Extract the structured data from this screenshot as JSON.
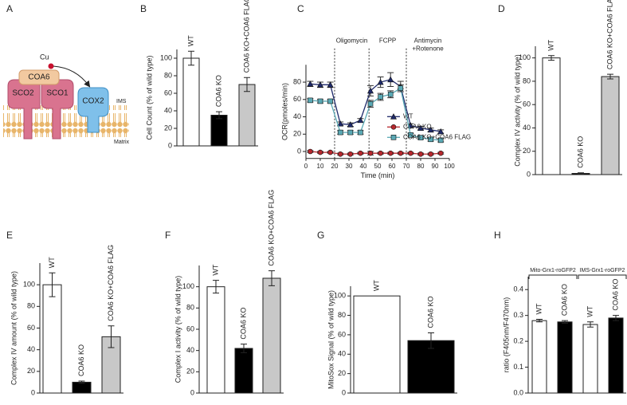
{
  "diagram": {
    "label": "A",
    "labels": {
      "cu": "Cu",
      "coa6": "COA6",
      "sco2": "SCO2",
      "sco1": "SCO1",
      "cox2": "COX2",
      "ims": "IMS",
      "matrix": "Matrix"
    }
  },
  "chart_data": [
    {
      "type": "bar",
      "label": "B",
      "ylabel": "Cell Count (% of wild type)",
      "categories": [
        "WT",
        "COA6 KO",
        "COA6 KO+COA6 FLAG"
      ],
      "values": [
        100,
        35,
        70
      ],
      "errors": [
        8,
        4,
        8
      ],
      "colors": [
        "#ffffff",
        "#000000",
        "#c8c8c8"
      ],
      "ylim": [
        0,
        110
      ],
      "yticks": [
        0,
        20,
        40,
        60,
        80,
        100
      ]
    },
    {
      "type": "line",
      "label": "C",
      "ylabel": "OCR(pmoles/min)",
      "xlabel": "Time (min)",
      "x": [
        3,
        10,
        17,
        24,
        31,
        38,
        45,
        52,
        59,
        66,
        73,
        80,
        87,
        94
      ],
      "series": [
        {
          "name": "WT",
          "color": "#1f2a6b",
          "marker": "triangle",
          "values": [
            78,
            77,
            77,
            32,
            31,
            36,
            70,
            80,
            83,
            75,
            30,
            27,
            25,
            23
          ],
          "errors": [
            3,
            3,
            3,
            2,
            2,
            2,
            6,
            6,
            8,
            6,
            2,
            2,
            2,
            2
          ]
        },
        {
          "name": "COA6 KO",
          "color": "#b7282e",
          "marker": "circle",
          "values": [
            0,
            -1,
            -1,
            -3,
            -3,
            -2,
            -2,
            -2,
            -2,
            -2,
            -2,
            -3,
            -3,
            -2
          ],
          "errors": [
            1,
            1,
            1,
            1,
            1,
            1,
            2,
            1,
            1,
            1,
            1,
            1,
            1,
            1
          ]
        },
        {
          "name": "COA6 KO+COA6 FLAG",
          "color": "#5aa9b5",
          "marker": "square",
          "values": [
            59,
            58,
            58,
            22,
            22,
            22,
            55,
            63,
            66,
            73,
            19,
            16,
            14,
            13
          ],
          "errors": [
            2,
            2,
            2,
            2,
            2,
            2,
            4,
            4,
            4,
            4,
            2,
            2,
            2,
            2
          ]
        }
      ],
      "annotations": [
        {
          "text": [
            "Oligomycin"
          ],
          "x": 20
        },
        {
          "text": [
            "FCPP"
          ],
          "x": 44
        },
        {
          "text": [
            "Antimycin",
            "+Rotenone"
          ],
          "x": 70
        }
      ],
      "xlim": [
        0,
        100
      ],
      "xticks": [
        0,
        10,
        20,
        30,
        40,
        50,
        60,
        70,
        80,
        90,
        100
      ],
      "ylim": [
        -8,
        100
      ],
      "yticks": [
        0,
        20,
        40,
        60,
        80
      ],
      "legend": "right"
    },
    {
      "type": "bar",
      "label": "D",
      "ylabel": "Complex IV activity (% of wild type)",
      "categories": [
        "WT",
        "COA6 KO",
        "COA6 KO+COA6 FLAG"
      ],
      "values": [
        100,
        1,
        84
      ],
      "errors": [
        2,
        0.5,
        2
      ],
      "colors": [
        "#ffffff",
        "#000000",
        "#c8c8c8"
      ],
      "ylim": [
        0,
        110
      ],
      "yticks": [
        0,
        20,
        40,
        60,
        80,
        100
      ]
    },
    {
      "type": "bar",
      "label": "E",
      "ylabel": "Complex IV amount (% of wild type)",
      "categories": [
        "WT",
        "COA6 KO",
        "COA6 KO+COA6 FLAG"
      ],
      "values": [
        100,
        10,
        52
      ],
      "errors": [
        11,
        1,
        10
      ],
      "colors": [
        "#ffffff",
        "#000000",
        "#c8c8c8"
      ],
      "ylim": [
        0,
        120
      ],
      "yticks": [
        0,
        20,
        40,
        60,
        80,
        100
      ]
    },
    {
      "type": "bar",
      "label": "F",
      "ylabel": "Complex I activity (% of wild type)",
      "categories": [
        "WT",
        "COA6 KO",
        "COA6 KO+COA6 FLAG"
      ],
      "values": [
        100,
        42,
        108
      ],
      "errors": [
        6,
        4,
        7
      ],
      "colors": [
        "#ffffff",
        "#000000",
        "#c8c8c8"
      ],
      "ylim": [
        0,
        120
      ],
      "yticks": [
        0,
        20,
        40,
        60,
        80,
        100
      ]
    },
    {
      "type": "bar",
      "label": "G",
      "ylabel": "MitoSox Signal (% of wild type)",
      "categories": [
        "WT",
        "COA6 KO"
      ],
      "values": [
        100,
        54
      ],
      "errors": [
        0,
        8
      ],
      "colors": [
        "#ffffff",
        "#000000"
      ],
      "ylim": [
        0,
        110
      ],
      "yticks": [
        0,
        20,
        40,
        60,
        80,
        100
      ]
    },
    {
      "type": "bar",
      "label": "H",
      "ylabel": "ratio (F405nm/F470nm)",
      "categories": [
        "WT",
        "COA6 KO",
        "WT",
        "COA6 KO"
      ],
      "values": [
        0.28,
        0.275,
        0.265,
        0.29
      ],
      "errors": [
        0.005,
        0.005,
        0.01,
        0.01
      ],
      "colors": [
        "#ffffff",
        "#000000",
        "#ffffff",
        "#000000"
      ],
      "groups": [
        "Mito-Grx1-roGFP2",
        "IMS-Grx1-roGFP2"
      ],
      "ylim": [
        0,
        0.45
      ],
      "yticks": [
        {
          "value": 0,
          "label": "0.0"
        },
        {
          "value": 0.1,
          "label": "0.1"
        },
        {
          "value": 0.2,
          "label": "0.2"
        },
        {
          "value": 0.3,
          "label": "0.3"
        },
        {
          "value": 0.4,
          "label": "0.4"
        }
      ]
    }
  ]
}
